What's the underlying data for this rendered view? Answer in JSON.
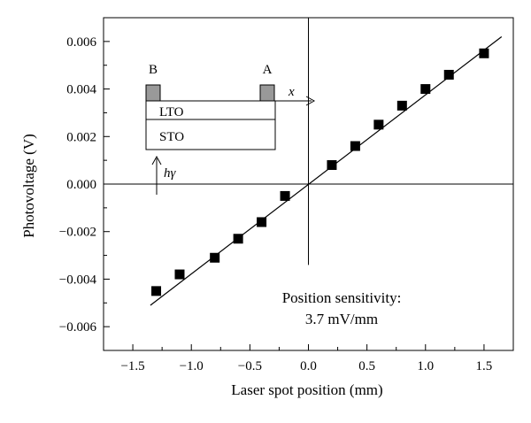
{
  "chart_data": {
    "type": "scatter",
    "xlabel": "Laser spot position (mm)",
    "ylabel": "Photovoltage (V)",
    "xlim": [
      -1.75,
      1.75
    ],
    "ylim": [
      -0.007,
      0.007
    ],
    "x_ticks": [
      -1.5,
      -1.0,
      -0.5,
      0.0,
      0.5,
      1.0,
      1.5
    ],
    "x_tick_labels": [
      "−1.5",
      "−1.0",
      "−0.5",
      "0.0",
      "0.5",
      "1.0",
      "1.5"
    ],
    "y_ticks": [
      0.006,
      0.004,
      0.002,
      0.0,
      -0.002,
      -0.004,
      -0.006
    ],
    "y_tick_labels": [
      "0.006",
      "0.004",
      "0.002",
      "0.000",
      "−0.002",
      "−0.004",
      "−0.006"
    ],
    "series": [
      {
        "x": [
          -1.3,
          -1.1,
          -0.8,
          -0.6,
          -0.4,
          -0.2,
          0.2,
          0.4,
          0.6,
          0.8,
          1.0,
          1.2,
          1.5
        ],
        "y": [
          -0.0045,
          -0.0038,
          -0.0031,
          -0.0023,
          -0.0016,
          -0.0005,
          0.0008,
          0.0016,
          0.0025,
          0.0033,
          0.004,
          0.0046,
          0.0055
        ]
      }
    ],
    "fit_line": {
      "x": [
        -1.35,
        1.65
      ],
      "y": [
        -0.0051,
        0.0062
      ]
    },
    "annotation": {
      "line1": "Position sensitivity:",
      "line2": "3.7 mV/mm"
    },
    "inset": {
      "electrode_b": "B",
      "electrode_a": "A",
      "layer_top": "LTO",
      "layer_bottom": "STO",
      "axis_label": "x",
      "light_label": "hγ"
    },
    "colors": {
      "marker": "#000000",
      "electrode": "#999999"
    },
    "grid": false
  }
}
